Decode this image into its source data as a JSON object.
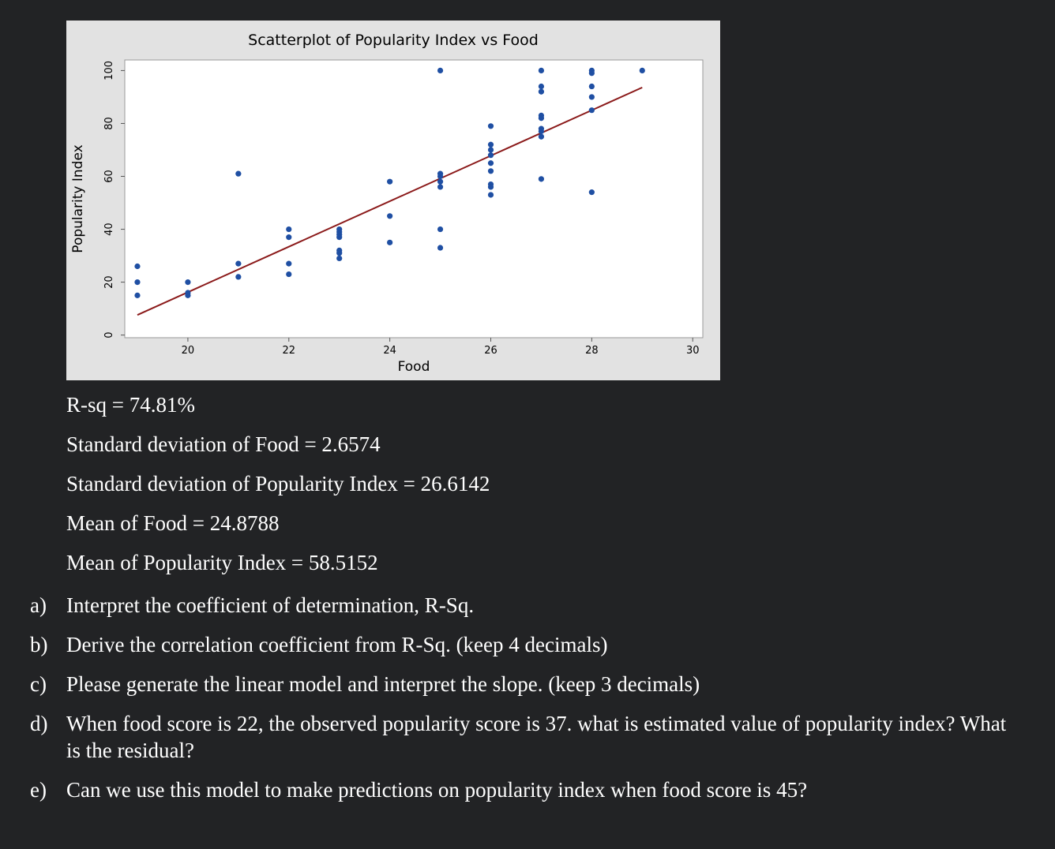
{
  "chart_data": {
    "type": "scatter",
    "title": "Scatterplot of Popularity Index vs Food",
    "xlabel": "Food",
    "ylabel": "Popularity Index",
    "xlim": [
      18.75,
      30.2
    ],
    "ylim": [
      -1,
      104
    ],
    "xticks": [
      20,
      22,
      24,
      26,
      28,
      30
    ],
    "yticks": [
      0,
      20,
      40,
      60,
      80,
      100
    ],
    "point_color": "#1f4fa3",
    "fit_color": "#8b1a1a",
    "background_color": "#e2e2e2",
    "points": [
      {
        "x": 19,
        "y": 26
      },
      {
        "x": 19,
        "y": 20
      },
      {
        "x": 19,
        "y": 15
      },
      {
        "x": 20,
        "y": 20
      },
      {
        "x": 20,
        "y": 16
      },
      {
        "x": 20,
        "y": 15
      },
      {
        "x": 21,
        "y": 61
      },
      {
        "x": 21,
        "y": 27
      },
      {
        "x": 21,
        "y": 22
      },
      {
        "x": 22,
        "y": 40
      },
      {
        "x": 22,
        "y": 37
      },
      {
        "x": 22,
        "y": 27
      },
      {
        "x": 22,
        "y": 23
      },
      {
        "x": 23,
        "y": 40
      },
      {
        "x": 23,
        "y": 39
      },
      {
        "x": 23,
        "y": 38
      },
      {
        "x": 23,
        "y": 37
      },
      {
        "x": 23,
        "y": 32
      },
      {
        "x": 23,
        "y": 31
      },
      {
        "x": 23,
        "y": 29
      },
      {
        "x": 24,
        "y": 58
      },
      {
        "x": 24,
        "y": 45
      },
      {
        "x": 24,
        "y": 35
      },
      {
        "x": 25,
        "y": 100
      },
      {
        "x": 25,
        "y": 61
      },
      {
        "x": 25,
        "y": 60
      },
      {
        "x": 25,
        "y": 58
      },
      {
        "x": 25,
        "y": 56
      },
      {
        "x": 25,
        "y": 40
      },
      {
        "x": 25,
        "y": 33
      },
      {
        "x": 26,
        "y": 79
      },
      {
        "x": 26,
        "y": 72
      },
      {
        "x": 26,
        "y": 70
      },
      {
        "x": 26,
        "y": 68
      },
      {
        "x": 26,
        "y": 65
      },
      {
        "x": 26,
        "y": 62
      },
      {
        "x": 26,
        "y": 57
      },
      {
        "x": 26,
        "y": 56
      },
      {
        "x": 26,
        "y": 53
      },
      {
        "x": 27,
        "y": 100
      },
      {
        "x": 27,
        "y": 94
      },
      {
        "x": 27,
        "y": 92
      },
      {
        "x": 27,
        "y": 83
      },
      {
        "x": 27,
        "y": 82
      },
      {
        "x": 27,
        "y": 78
      },
      {
        "x": 27,
        "y": 77
      },
      {
        "x": 27,
        "y": 75
      },
      {
        "x": 27,
        "y": 59
      },
      {
        "x": 28,
        "y": 100
      },
      {
        "x": 28,
        "y": 99
      },
      {
        "x": 28,
        "y": 94
      },
      {
        "x": 28,
        "y": 90
      },
      {
        "x": 28,
        "y": 85
      },
      {
        "x": 28,
        "y": 54
      },
      {
        "x": 29,
        "y": 100
      }
    ],
    "fit_line": {
      "x": [
        19,
        29
      ],
      "y": [
        7.6,
        93.6
      ]
    }
  },
  "stats": {
    "rsq": "R-sq = 74.81%",
    "sd_food": "Standard deviation of Food = 2.6574",
    "sd_pop": "Standard deviation of Popularity Index = 26.6142",
    "mean_food": "Mean of Food = 24.8788",
    "mean_pop": "Mean of Popularity Index = 58.5152"
  },
  "questions": [
    {
      "letter": "a)",
      "text": "Interpret the coefficient of determination, R-Sq."
    },
    {
      "letter": "b)",
      "text": "Derive the correlation coefficient from R-Sq. (keep 4 decimals)"
    },
    {
      "letter": "c)",
      "text": "Please generate the linear model and interpret the slope. (keep 3 decimals)"
    },
    {
      "letter": "d)",
      "text": "When food score is 22, the observed popularity score is 37. what is estimated value of popularity index? What is the residual?"
    },
    {
      "letter": "e)",
      "text": "Can we use this model to make predictions on popularity index when food score is 45?"
    }
  ]
}
